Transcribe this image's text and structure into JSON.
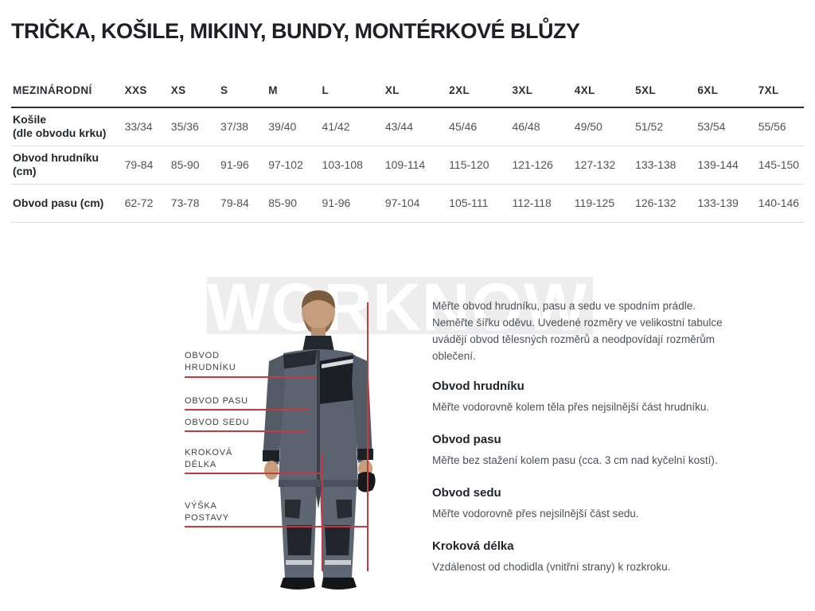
{
  "page": {
    "title": "TRIČKA, KOŠILE, MIKINY, BUNDY, MONTÉRKOVÉ BLŮZY"
  },
  "size_table": {
    "header": [
      "MEZINÁRODNÍ",
      "XXS",
      "XS",
      "S",
      "M",
      "L",
      "XL",
      "2XL",
      "3XL",
      "4XL",
      "5XL",
      "6XL",
      "7XL"
    ],
    "rows": [
      {
        "label": "Košile",
        "sublabel": "(dle obvodu krku)",
        "values": [
          "33/34",
          "35/36",
          "37/38",
          "39/40",
          "41/42",
          "43/44",
          "45/46",
          "46/48",
          "49/50",
          "51/52",
          "53/54",
          "55/56"
        ]
      },
      {
        "label": "Obvod hrudníku (cm)",
        "sublabel": "",
        "values": [
          "79-84",
          "85-90",
          "91-96",
          "97-102",
          "103-108",
          "109-114",
          "115-120",
          "121-126",
          "127-132",
          "133-138",
          "139-144",
          "145-150"
        ]
      },
      {
        "label": "Obvod pasu (cm)",
        "sublabel": "",
        "values": [
          "62-72",
          "73-78",
          "79-84",
          "85-90",
          "91-96",
          "97-104",
          "105-111",
          "112-118",
          "119-125",
          "126-132",
          "133-139",
          "140-146"
        ]
      }
    ]
  },
  "figure": {
    "watermark": "WORKNOW",
    "labels": [
      {
        "id": "chest",
        "text": "OBVOD\nHRUDNÍKU"
      },
      {
        "id": "waist",
        "text": "OBVOD PASU"
      },
      {
        "id": "seat",
        "text": "OBVOD SEDU"
      },
      {
        "id": "inseam",
        "text": "KROKOVÁ\nDÉLKA"
      },
      {
        "id": "height",
        "text": "VÝŠKA\nPOSTAVY"
      }
    ]
  },
  "instructions": {
    "intro": "Měřte obvod hrudníku, pasu a sedu ve spodním prádle. Neměřte šířku oděvu. Uvedené rozměry ve velikostní tabulce uvádějí obvod tělesných rozměrů a neodpovídají rozměrům oblečení.",
    "sections": [
      {
        "heading": "Obvod hrudníku",
        "text": "Měřte vodorovně kolem těla přes nejsilnější část hrudníku."
      },
      {
        "heading": "Obvod pasu",
        "text": "Měřte bez stažení kolem pasu (cca. 3 cm nad kyčelní kostí)."
      },
      {
        "heading": "Obvod sedu",
        "text": "Měřte vodorovně přes nejsilnější část sedu."
      },
      {
        "heading": "Kroková délka",
        "text": "Vzdálenost od chodidla (vnitřní strany) k rozkroku."
      }
    ]
  },
  "colors": {
    "accent_red": "#c33a41",
    "heading_dark": "#1f242a",
    "body_text": "#4b5158",
    "watermark_band": "#ededed"
  }
}
